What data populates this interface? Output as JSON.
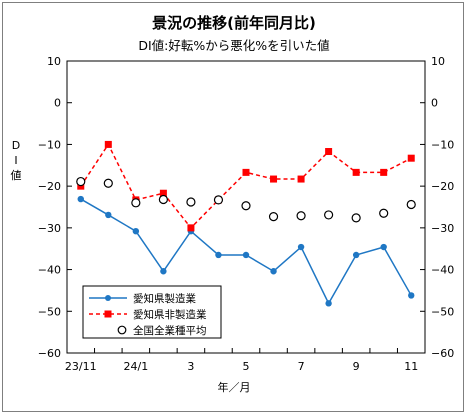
{
  "chart_data": {
    "type": "line",
    "title": "景況の推移(前年同月比)",
    "subtitle": "DI値:好転%から悪化%を引いた値",
    "ylabel": "DI値",
    "xlabel": "年／月",
    "ylim": [
      -60,
      10
    ],
    "yticks": [
      10,
      0,
      -10,
      -20,
      -30,
      -40,
      -50,
      -60
    ],
    "categories": [
      "23/11",
      "23/12",
      "24/1",
      "24/2",
      "24/3",
      "24/4",
      "24/5",
      "24/6",
      "24/7",
      "24/8",
      "24/9",
      "24/10",
      "24/11"
    ],
    "xtick_labels": [
      "23/11",
      "",
      "24/1",
      "",
      "3",
      "",
      "5",
      "",
      "7",
      "",
      "9",
      "",
      "11"
    ],
    "legend_position": "bottom-left",
    "grid": false,
    "series": [
      {
        "name": "愛知県製造業",
        "style": "line-circle",
        "color": "#1f77c4",
        "values": [
          -23.1,
          -26.9,
          -30.8,
          -40.4,
          -30.8,
          -36.5,
          -36.5,
          -40.4,
          -34.6,
          -48.1,
          -36.5,
          -34.6,
          -46.2
        ]
      },
      {
        "name": "愛知県非製造業",
        "style": "dashed-square",
        "color": "#ff0000",
        "values": [
          -20.0,
          -10.0,
          -23.3,
          -21.7,
          -30.0,
          -23.3,
          -16.7,
          -18.3,
          -18.3,
          -11.7,
          -16.7,
          -16.7,
          -13.3
        ]
      },
      {
        "name": "全国全業種平均",
        "style": "open-circle",
        "color": "#000000",
        "values": [
          -18.9,
          -19.3,
          -24.0,
          -23.2,
          -23.8,
          -23.3,
          -24.7,
          -27.3,
          -27.1,
          -26.9,
          -27.6,
          -26.5,
          -24.4
        ]
      }
    ]
  }
}
